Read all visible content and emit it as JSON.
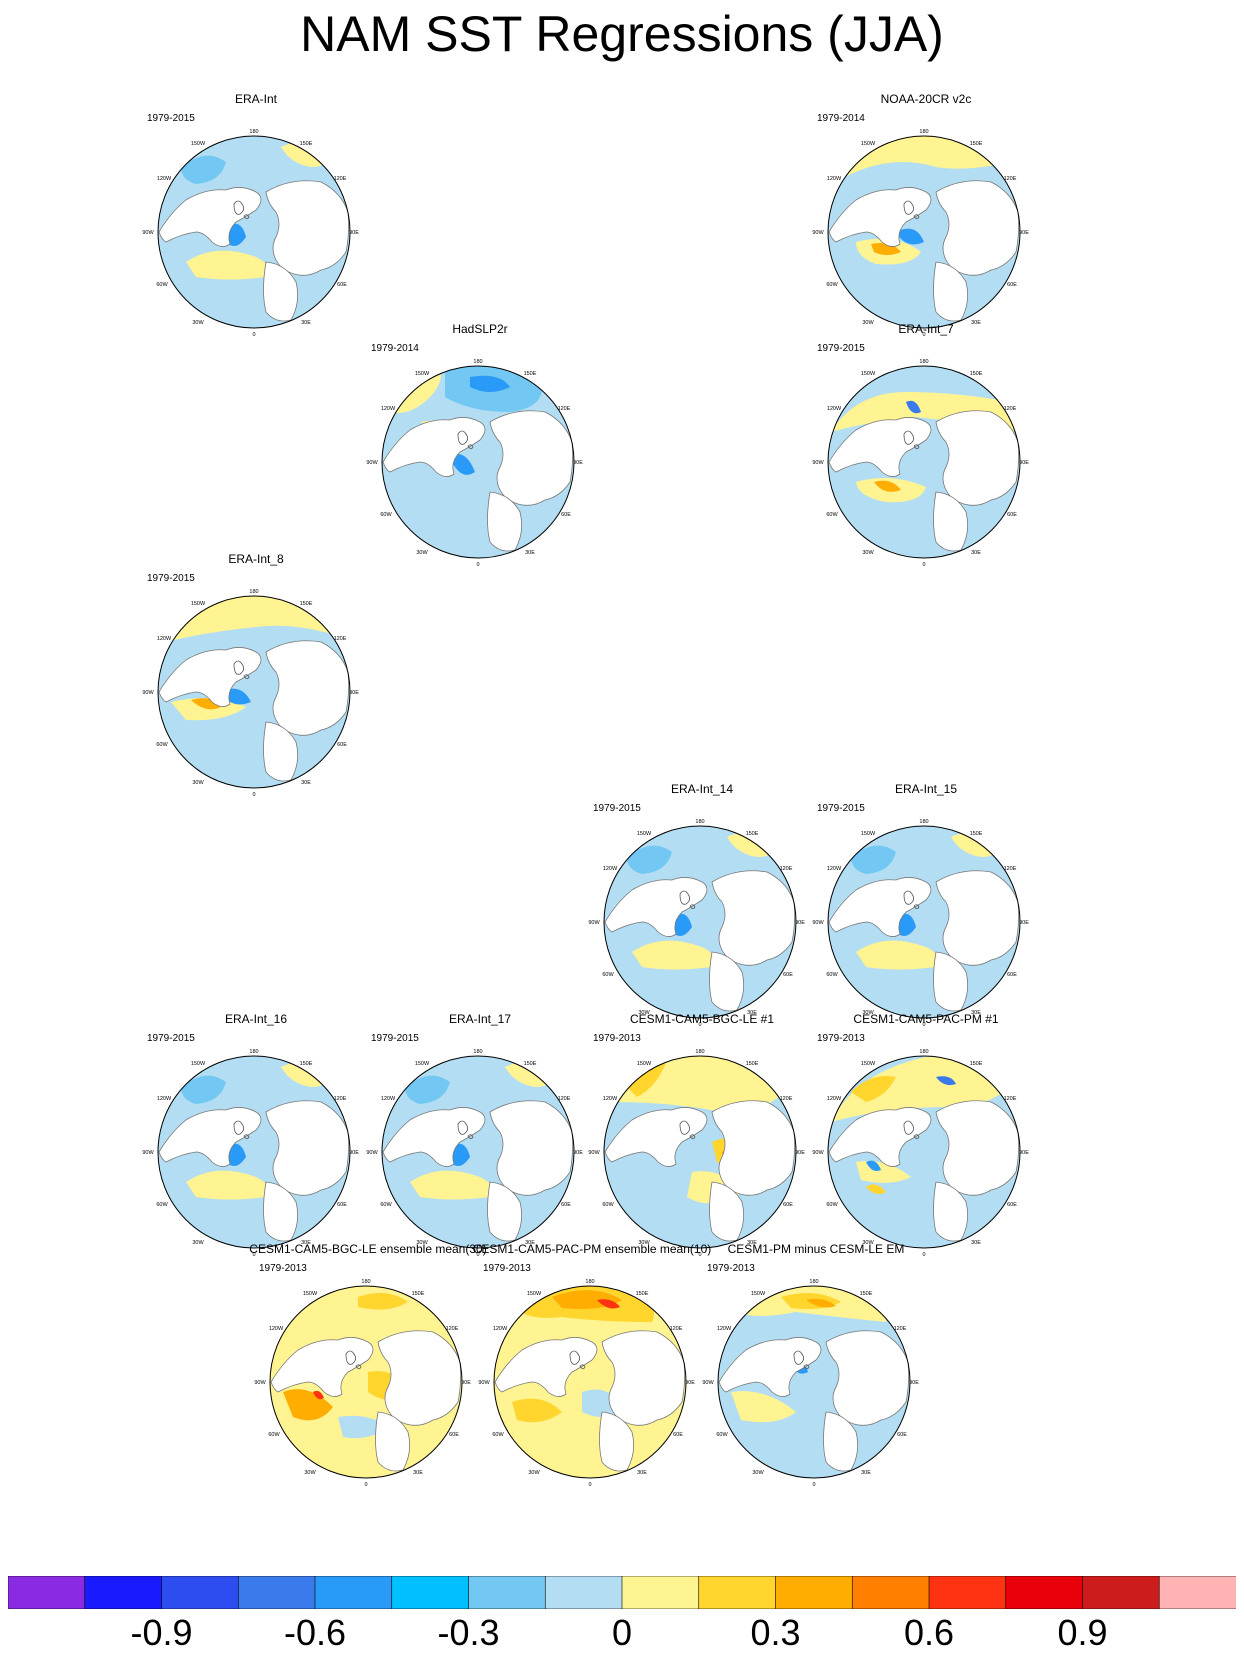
{
  "title": "NAM SST Regressions (JJA)",
  "panels": [
    {
      "title": "ERA-Int",
      "years": "1979-2015",
      "pattern": "era",
      "left": 0
    },
    {
      "title": "NOAA-20CR v2c",
      "years": "1979-2014",
      "pattern": "noaa"
    },
    {
      "title": "HadSLP2r",
      "years": "1979-2014",
      "pattern": "had"
    },
    {
      "title": "ERA-Int_7",
      "years": "1979-2015",
      "pattern": "era7"
    },
    {
      "title": "ERA-Int_8",
      "years": "1979-2015",
      "pattern": "era8"
    },
    {
      "title": "ERA-Int_14",
      "years": "1979-2015",
      "pattern": "era"
    },
    {
      "title": "ERA-Int_15",
      "years": "1979-2015",
      "pattern": "era"
    },
    {
      "title": "ERA-Int_16",
      "years": "1979-2015",
      "pattern": "era"
    },
    {
      "title": "ERA-Int_17",
      "years": "1979-2015",
      "pattern": "era"
    },
    {
      "title": "CESM1-CAM5-BGC-LE #1",
      "years": "1979-2013",
      "pattern": "bgc1"
    },
    {
      "title": "CESM1-CAM5-PAC-PM #1",
      "years": "1979-2013",
      "pattern": "pac1"
    },
    {
      "title": "CESM1-CAM5-BGC-LE ensemble mean(30)",
      "years": "1979-2013",
      "pattern": "bgcem"
    },
    {
      "title": "CESM1-CAM5-PAC-PM ensemble mean(10)",
      "years": "1979-2013",
      "pattern": "pacem"
    },
    {
      "title": "CESM1-PM minus CESM-LE EM",
      "years": "1979-2013",
      "pattern": "diff"
    }
  ],
  "longitude_labels": {
    "top": "180",
    "tr1": "150E",
    "tr2": "120E",
    "right": "90E",
    "br2": "60E",
    "br1": "30E",
    "bottom": "0",
    "bl1": "30W",
    "bl2": "60W",
    "left": "90W",
    "tl2": "120W",
    "tl1": "150W"
  },
  "colorbar": {
    "colors": [
      "#8a2be2",
      "#1a1aff",
      "#2e4df0",
      "#3a7aec",
      "#2a9af8",
      "#00c0ff",
      "#72c8f2",
      "#b3ddf2",
      "#fff491",
      "#ffd52e",
      "#ffad00",
      "#ff7f00",
      "#ff3311",
      "#e8000b",
      "#cc1c1c",
      "#ffb3b3"
    ],
    "labels": [
      "-0.9",
      "-0.6",
      "-0.3",
      "0",
      "0.3",
      "0.6",
      "0.9"
    ]
  }
}
